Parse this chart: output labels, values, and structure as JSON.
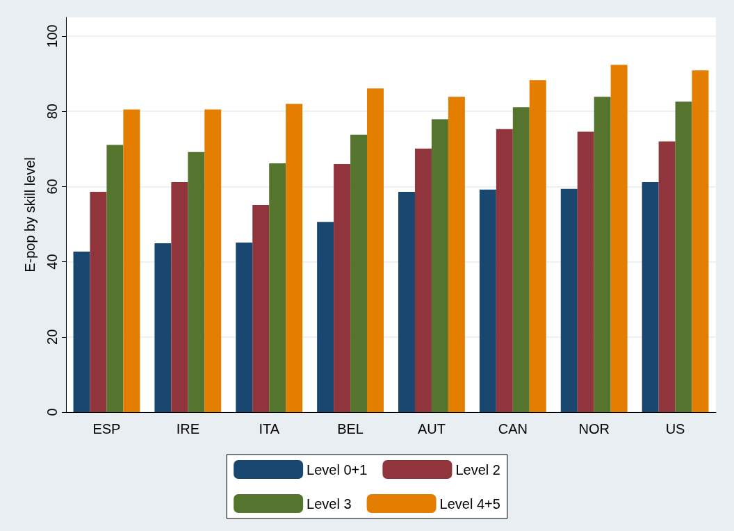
{
  "chart_data": {
    "type": "bar",
    "ylabel": "E-pop by skill level",
    "categories": [
      "ESP",
      "IRE",
      "ITA",
      "BEL",
      "AUT",
      "CAN",
      "NOR",
      "US"
    ],
    "series": [
      {
        "name": "Level 0+1",
        "color": "#1a476f",
        "values": [
          42.7,
          44.9,
          45.1,
          50.6,
          58.6,
          59.2,
          59.4,
          61.2
        ]
      },
      {
        "name": "Level 2",
        "color": "#90353b",
        "values": [
          58.6,
          61.2,
          55.1,
          66.0,
          70.1,
          75.3,
          74.6,
          72.0
        ]
      },
      {
        "name": "Level 3",
        "color": "#55752f",
        "values": [
          71.1,
          69.2,
          66.2,
          73.8,
          77.9,
          81.1,
          83.9,
          82.6
        ]
      },
      {
        "name": "Level 4+5",
        "color": "#e37e00",
        "values": [
          80.5,
          80.5,
          82.0,
          86.1,
          83.9,
          88.3,
          92.4,
          90.9
        ]
      }
    ],
    "ylim": [
      0,
      105
    ],
    "yticks": [
      0,
      20,
      40,
      60,
      80,
      100
    ],
    "grid": "y",
    "legend": "bottom"
  }
}
